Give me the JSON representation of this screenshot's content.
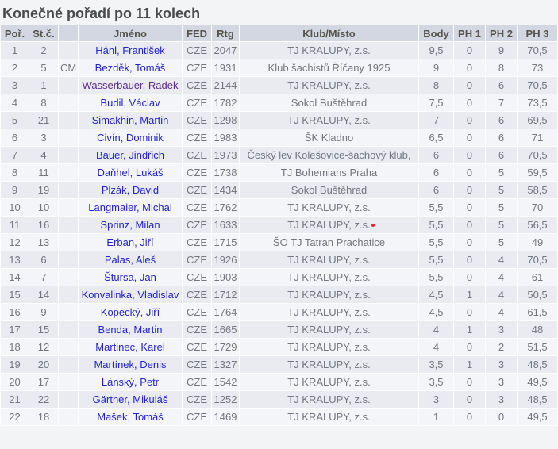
{
  "page": {
    "title": "Konečné pořadí po 11 kolech"
  },
  "colors": {
    "link": "#2323d3",
    "visited_link": "#5d2d8e",
    "header_bg": "#d3d7e1",
    "row_odd": "#e9ebf1",
    "row_even": "#f4f5f8",
    "marker_red": "#e8252a"
  },
  "table": {
    "columns": [
      "Poř.",
      "St.č.",
      "",
      "Jméno",
      "FED",
      "Rtg",
      "Klub/Místo",
      "Body",
      "PH 1",
      "PH 2",
      "PH 3"
    ],
    "rows": [
      {
        "por": "1",
        "stc": "2",
        "title": "",
        "name": "Hánl, František",
        "fed": "CZE",
        "rtg": "2047",
        "club": "TJ KRALUPY, z.s.",
        "body": "9,5",
        "ph1": "0",
        "ph2": "9",
        "ph3": "70,5"
      },
      {
        "por": "2",
        "stc": "5",
        "title": "CM",
        "name": "Bezděk, Tomáš",
        "fed": "CZE",
        "rtg": "1931",
        "club": "Klub šachistů Říčany 1925",
        "body": "9",
        "ph1": "0",
        "ph2": "8",
        "ph3": "73"
      },
      {
        "por": "3",
        "stc": "1",
        "title": "",
        "name": "Wasserbauer, Radek",
        "fed": "CZE",
        "rtg": "2144",
        "club": "TJ KRALUPY, z.s.",
        "body": "8",
        "ph1": "0",
        "ph2": "6",
        "ph3": "70,5",
        "name_visited": true
      },
      {
        "por": "4",
        "stc": "8",
        "title": "",
        "name": "Budil, Václav",
        "fed": "CZE",
        "rtg": "1782",
        "club": "Sokol Buštěhrad",
        "body": "7,5",
        "ph1": "0",
        "ph2": "7",
        "ph3": "73,5"
      },
      {
        "por": "5",
        "stc": "21",
        "title": "",
        "name": "Simakhin, Martin",
        "fed": "CZE",
        "rtg": "1298",
        "club": "TJ KRALUPY, z.s.",
        "body": "7",
        "ph1": "0",
        "ph2": "6",
        "ph3": "69,5"
      },
      {
        "por": "6",
        "stc": "3",
        "title": "",
        "name": "Civín, Dominik",
        "fed": "CZE",
        "rtg": "1983",
        "club": "ŠK Kladno",
        "body": "6,5",
        "ph1": "0",
        "ph2": "6",
        "ph3": "71"
      },
      {
        "por": "7",
        "stc": "4",
        "title": "",
        "name": "Bauer, Jindřich",
        "fed": "CZE",
        "rtg": "1973",
        "club": "Český lev Kolešovice-šachový klub,",
        "body": "6",
        "ph1": "0",
        "ph2": "6",
        "ph3": "70,5"
      },
      {
        "por": "8",
        "stc": "11",
        "title": "",
        "name": "Daňhel, Lukáš",
        "fed": "CZE",
        "rtg": "1738",
        "club": "TJ Bohemians Praha",
        "body": "6",
        "ph1": "0",
        "ph2": "5",
        "ph3": "59,5"
      },
      {
        "por": "9",
        "stc": "19",
        "title": "",
        "name": "Plzák, David",
        "fed": "CZE",
        "rtg": "1434",
        "club": "Sokol Buštěhrad",
        "body": "6",
        "ph1": "0",
        "ph2": "5",
        "ph3": "58,5"
      },
      {
        "por": "10",
        "stc": "10",
        "title": "",
        "name": "Langmaier, Michal",
        "fed": "CZE",
        "rtg": "1762",
        "club": "TJ KRALUPY, z.s.",
        "body": "5,5",
        "ph1": "0",
        "ph2": "5",
        "ph3": "70"
      },
      {
        "por": "11",
        "stc": "16",
        "title": "",
        "name": "Sprinz, Milan",
        "fed": "CZE",
        "rtg": "1633",
        "club": "TJ KRALUPY, z.s.",
        "body": "5,5",
        "ph1": "0",
        "ph2": "5",
        "ph3": "56,5",
        "marker": "red-dot"
      },
      {
        "por": "12",
        "stc": "13",
        "title": "",
        "name": "Erban, Jiří",
        "fed": "CZE",
        "rtg": "1715",
        "club": "ŠO TJ Tatran Prachatice",
        "body": "5,5",
        "ph1": "0",
        "ph2": "5",
        "ph3": "49"
      },
      {
        "por": "13",
        "stc": "6",
        "title": "",
        "name": "Palas, Aleš",
        "fed": "CZE",
        "rtg": "1926",
        "club": "TJ KRALUPY, z.s.",
        "body": "5,5",
        "ph1": "0",
        "ph2": "4",
        "ph3": "70,5"
      },
      {
        "por": "14",
        "stc": "7",
        "title": "",
        "name": "Štursa, Jan",
        "fed": "CZE",
        "rtg": "1903",
        "club": "TJ KRALUPY, z.s.",
        "body": "5,5",
        "ph1": "0",
        "ph2": "4",
        "ph3": "61"
      },
      {
        "por": "15",
        "stc": "14",
        "title": "",
        "name": "Konvalinka, Vladislav",
        "fed": "CZE",
        "rtg": "1712",
        "club": "TJ KRALUPY, z.s.",
        "body": "4,5",
        "ph1": "1",
        "ph2": "4",
        "ph3": "50,5"
      },
      {
        "por": "16",
        "stc": "9",
        "title": "",
        "name": "Kopecký, Jiří",
        "fed": "CZE",
        "rtg": "1764",
        "club": "TJ KRALUPY, z.s.",
        "body": "4,5",
        "ph1": "0",
        "ph2": "4",
        "ph3": "61,5"
      },
      {
        "por": "17",
        "stc": "15",
        "title": "",
        "name": "Benda, Martin",
        "fed": "CZE",
        "rtg": "1665",
        "club": "TJ KRALUPY, z.s.",
        "body": "4",
        "ph1": "1",
        "ph2": "3",
        "ph3": "48"
      },
      {
        "por": "18",
        "stc": "12",
        "title": "",
        "name": "Martinec, Karel",
        "fed": "CZE",
        "rtg": "1729",
        "club": "TJ KRALUPY, z.s.",
        "body": "4",
        "ph1": "0",
        "ph2": "2",
        "ph3": "51,5"
      },
      {
        "por": "19",
        "stc": "20",
        "title": "",
        "name": "Martínek, Denis",
        "fed": "CZE",
        "rtg": "1327",
        "club": "TJ KRALUPY, z.s.",
        "body": "3,5",
        "ph1": "1",
        "ph2": "3",
        "ph3": "48,5"
      },
      {
        "por": "20",
        "stc": "17",
        "title": "",
        "name": "Lánský, Petr",
        "fed": "CZE",
        "rtg": "1542",
        "club": "TJ KRALUPY, z.s.",
        "body": "3,5",
        "ph1": "0",
        "ph2": "3",
        "ph3": "49,5"
      },
      {
        "por": "21",
        "stc": "22",
        "title": "",
        "name": "Gärtner, Mikuláš",
        "fed": "CZE",
        "rtg": "1252",
        "club": "TJ KRALUPY, z.s.",
        "body": "3",
        "ph1": "0",
        "ph2": "3",
        "ph3": "48,5"
      },
      {
        "por": "22",
        "stc": "18",
        "title": "",
        "name": "Mašek, Tomáš",
        "fed": "CZE",
        "rtg": "1469",
        "club": "TJ KRALUPY, z.s.",
        "body": "1",
        "ph1": "0",
        "ph2": "0",
        "ph3": "49,5"
      }
    ]
  }
}
